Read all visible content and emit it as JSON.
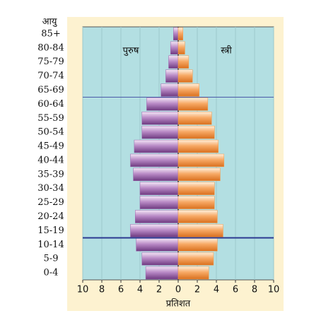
{
  "chart_data": {
    "type": "pyramid",
    "y_header": "आयु",
    "x_label": "प्रतिशत",
    "categories": [
      "85+",
      "80-84",
      "75-79",
      "70-74",
      "65-69",
      "60-64",
      "55-59",
      "50-54",
      "45-49",
      "40-44",
      "35-39",
      "30-34",
      "25-29",
      "20-24",
      "15-19",
      "10-14",
      "5-9",
      "0-4"
    ],
    "series": [
      {
        "name": "पुरुष",
        "color": "#9b5fab",
        "side": "left",
        "values": [
          0.5,
          0.8,
          1.0,
          1.3,
          1.8,
          3.3,
          3.8,
          3.8,
          4.6,
          5.0,
          4.7,
          4.0,
          4.0,
          4.5,
          5.0,
          4.4,
          3.8,
          3.4
        ]
      },
      {
        "name": "स्त्री",
        "color": "#f5994a",
        "side": "right",
        "values": [
          0.5,
          0.7,
          1.1,
          1.5,
          2.2,
          3.1,
          3.5,
          3.8,
          4.2,
          4.8,
          4.4,
          3.8,
          3.8,
          4.1,
          4.7,
          4.1,
          3.7,
          3.2
        ]
      }
    ],
    "xlim": [
      -10,
      10
    ],
    "xticks": [
      {
        "value": -10,
        "label": "10"
      },
      {
        "value": -8,
        "label": "8"
      },
      {
        "value": -6,
        "label": "6"
      },
      {
        "value": -4,
        "label": "4"
      },
      {
        "value": -2,
        "label": "2"
      },
      0,
      2,
      4,
      6,
      8,
      10
    ],
    "grid": true
  }
}
